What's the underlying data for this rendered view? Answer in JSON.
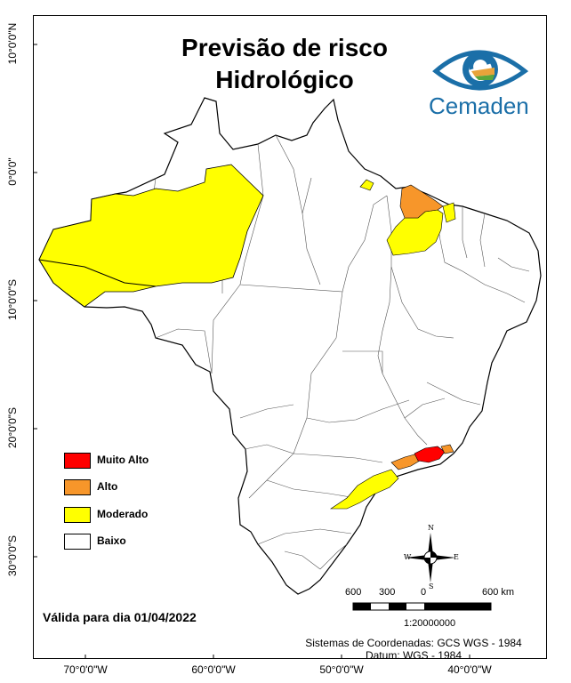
{
  "title": {
    "line1": "Previsão de risco",
    "line2": "Hidrológico"
  },
  "logo": {
    "text": "Cemaden",
    "icon": "cemaden-eye-logo"
  },
  "latitude_labels": [
    "10°0'0\"N",
    "0°0'0\"",
    "10°0'0\"S",
    "20°0'0\"S",
    "30°0'0\"S"
  ],
  "longitude_labels": [
    "70°0'0\"W",
    "60°0'0\"W",
    "50°0'0\"W",
    "40°0'0\"W"
  ],
  "legend": [
    {
      "label": "Muito Alto",
      "color": "#ff0000"
    },
    {
      "label": "Alto",
      "color": "#f7962a"
    },
    {
      "label": "Moderado",
      "color": "#ffff00"
    },
    {
      "label": "Baixo",
      "color": "#ffffff"
    }
  ],
  "validity": "Válida para dia 01/04/2022",
  "scale_bar": {
    "numbers": [
      "600",
      "300",
      "0",
      "600 km"
    ],
    "ratio": "1:20000000"
  },
  "compass": {
    "n": "N",
    "s": "S",
    "e": "E",
    "w": "W"
  },
  "coordinate_system": {
    "line1": "Sistemas de Coordenadas: GCS WGS - 1984",
    "line2": "Datum: WGS - 1984"
  }
}
